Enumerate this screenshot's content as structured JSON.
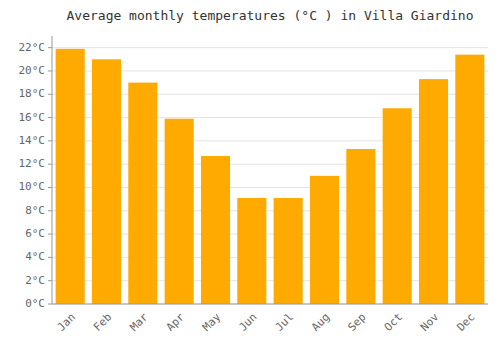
{
  "chart_data": {
    "type": "bar",
    "title": "Average monthly temperatures (°C ) in Villa Giardino",
    "categories": [
      "Jan",
      "Feb",
      "Mar",
      "Apr",
      "May",
      "Jun",
      "Jul",
      "Aug",
      "Sep",
      "Oct",
      "Nov",
      "Dec"
    ],
    "values": [
      21.9,
      21.0,
      19.0,
      15.9,
      12.7,
      9.1,
      9.1,
      11.0,
      13.3,
      16.8,
      19.3,
      21.4
    ],
    "color": "#FFAA00",
    "ylim": [
      0,
      23
    ],
    "yticks": [
      {
        "value": 0,
        "label": "0°C"
      },
      {
        "value": 2,
        "label": "2°C"
      },
      {
        "value": 4,
        "label": "4°C"
      },
      {
        "value": 6,
        "label": "6°C"
      },
      {
        "value": 8,
        "label": "8°C"
      },
      {
        "value": 10,
        "label": "10°C"
      },
      {
        "value": 12,
        "label": "12°C"
      },
      {
        "value": 14,
        "label": "14°C"
      },
      {
        "value": 16,
        "label": "16°C"
      },
      {
        "value": 18,
        "label": "18°C"
      },
      {
        "value": 20,
        "label": "20°C"
      },
      {
        "value": 22,
        "label": "22°C"
      }
    ],
    "grid": true
  }
}
